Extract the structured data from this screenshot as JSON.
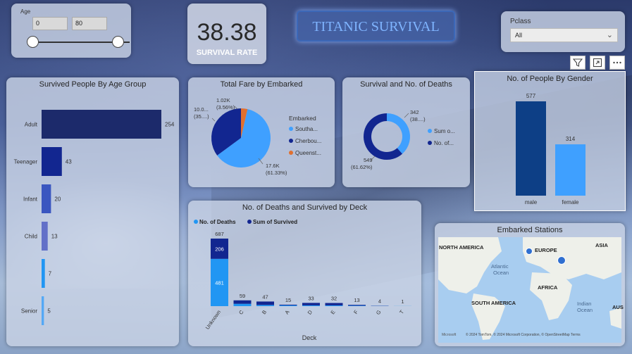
{
  "age_slicer": {
    "label": "Age",
    "min": "0",
    "max": "80"
  },
  "kpi": {
    "value": "38.38",
    "label": "SURVIVAL RATE"
  },
  "dashboard_title": "TITANIC SURVIVAL",
  "pclass_slicer": {
    "label": "Pclass",
    "selected": "All"
  },
  "colors": {
    "navy": "#1c2a6b",
    "dark_blue": "#122690",
    "mid_blue": "#3a56c0",
    "light_blue": "#2196f3",
    "sky_blue": "#3fa0ff",
    "orange": "#e07030"
  },
  "chart_data": [
    {
      "type": "bar",
      "title": "Survived People By Age Group",
      "categories": [
        "Adult",
        "Teenager",
        "Infant",
        "Child",
        "",
        "Senior"
      ],
      "values": [
        254,
        43,
        20,
        13,
        7,
        5
      ],
      "labels": [
        "254",
        "43",
        "20",
        "13",
        "7",
        "5"
      ],
      "orientation": "horizontal"
    },
    {
      "type": "pie",
      "title": "Total Fare by Embarked",
      "legend_title": "Embarked",
      "legend": [
        "Southa...",
        "Cherbou...",
        "Queenst..."
      ],
      "slice_shares": [
        61.33,
        35.11,
        3.56
      ],
      "data_labels": [
        {
          "value": "17.6K",
          "pct": "(61.33%)"
        },
        {
          "value": "10.0...",
          "pct": "(35....)"
        },
        {
          "value": "1.02K",
          "pct": "(3.56%)"
        }
      ]
    },
    {
      "type": "pie",
      "title": "Survival and No. of Deaths",
      "legend": [
        "Sum o...",
        "No. of..."
      ],
      "values": [
        342,
        549
      ],
      "data_labels": [
        {
          "value": "342",
          "pct": "(38....)"
        },
        {
          "value": "549",
          "pct": "(61.62%)"
        }
      ],
      "donut": true
    },
    {
      "type": "bar",
      "title": "No. of People By Gender",
      "categories": [
        "male",
        "female"
      ],
      "values": [
        577,
        314
      ],
      "labels": [
        "577",
        "314"
      ]
    },
    {
      "type": "bar",
      "title": "No. of Deaths and Survived by Deck",
      "xlabel": "Deck",
      "categories": [
        "Unknown",
        "C",
        "B",
        "A",
        "D",
        "E",
        "F",
        "G",
        "T"
      ],
      "totals": [
        687,
        59,
        47,
        15,
        33,
        32,
        13,
        4,
        1
      ],
      "series": [
        {
          "name": "No. of Deaths",
          "values": [
            481,
            24,
            12,
            8,
            8,
            8,
            5,
            2,
            1
          ],
          "labels": [
            "481",
            "",
            "",
            "",
            "",
            "",
            "",
            "",
            ""
          ]
        },
        {
          "name": "Sum of Survived",
          "values": [
            206,
            35,
            35,
            7,
            25,
            24,
            8,
            2,
            0
          ],
          "labels": [
            "206",
            "",
            "",
            "",
            "",
            "",
            "",
            "",
            ""
          ]
        }
      ],
      "stacked": true
    }
  ],
  "map": {
    "title": "Embarked Stations",
    "labels": [
      "NORTH AMERICA",
      "EUROPE",
      "ASIA",
      "Atlantic Ocean",
      "AFRICA",
      "SOUTH AMERICA",
      "Indian Ocean",
      "AUS"
    ],
    "attribution": "© 2024 TomTom, © 2024 Microsoft Corporation, © OpenStreetMap  Terms",
    "brand": "Microsoft"
  }
}
